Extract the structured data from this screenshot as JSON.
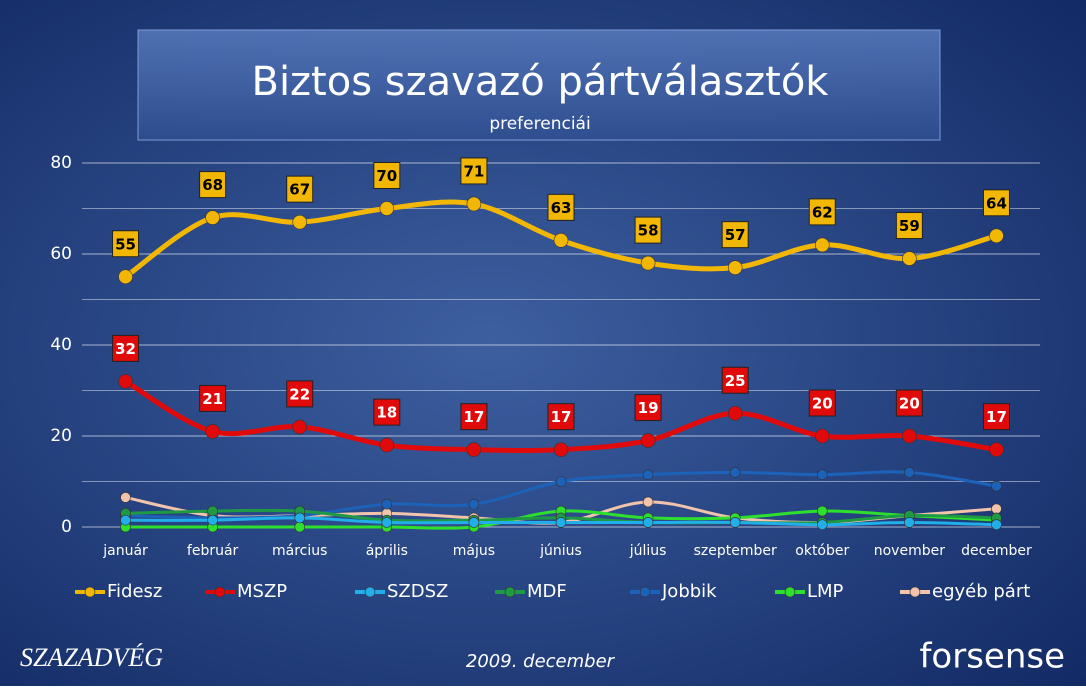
{
  "chart_data": {
    "type": "line",
    "title": "Biztos szavazó pártválasztók",
    "subtitle": "preferenciái",
    "categories": [
      "január",
      "február",
      "március",
      "április",
      "május",
      "június",
      "július",
      "szeptember",
      "október",
      "november",
      "december"
    ],
    "series": [
      {
        "name": "Fidesz",
        "color": "#f2b705",
        "data_labels": true,
        "values": [
          55,
          68,
          67,
          70,
          71,
          63,
          58,
          57,
          62,
          59,
          64
        ]
      },
      {
        "name": "MSZP",
        "color": "#e00a0a",
        "data_labels": true,
        "values": [
          32,
          21,
          22,
          18,
          17,
          17,
          19,
          25,
          20,
          20,
          17
        ]
      },
      {
        "name": "SZDSZ",
        "color": "#22aee8",
        "values": [
          1.5,
          1.5,
          2,
          1,
          1,
          1,
          1,
          1,
          0.5,
          1,
          0.5
        ]
      },
      {
        "name": "MDF",
        "color": "#1f9a44",
        "values": [
          3,
          3.5,
          3.5,
          1.5,
          1.5,
          2,
          1,
          1,
          1,
          2.5,
          2
        ]
      },
      {
        "name": "Jobbik",
        "color": "#1c62b8",
        "values": [
          2.5,
          2,
          2.5,
          5,
          5,
          10,
          11.5,
          12,
          11.5,
          12,
          9
        ]
      },
      {
        "name": "LMP",
        "color": "#2ee02e",
        "values": [
          0,
          0,
          0,
          0,
          0,
          3.5,
          2,
          2,
          3.5,
          2.5,
          1.5
        ]
      },
      {
        "name": "egyéb párt",
        "color": "#f2c4ac",
        "values": [
          6.5,
          2.5,
          2.5,
          3,
          2,
          1,
          5.5,
          2,
          1,
          2.5,
          4
        ]
      }
    ],
    "ylim": [
      0,
      80
    ],
    "yticks": [
      0,
      20,
      40,
      60,
      80
    ],
    "y_minor_gridlines": [
      10,
      30,
      50,
      70
    ],
    "grid": true,
    "legend": "bottom"
  },
  "footer": "2009. december",
  "logos": [
    "SZAZADVÉG",
    "forsense"
  ]
}
